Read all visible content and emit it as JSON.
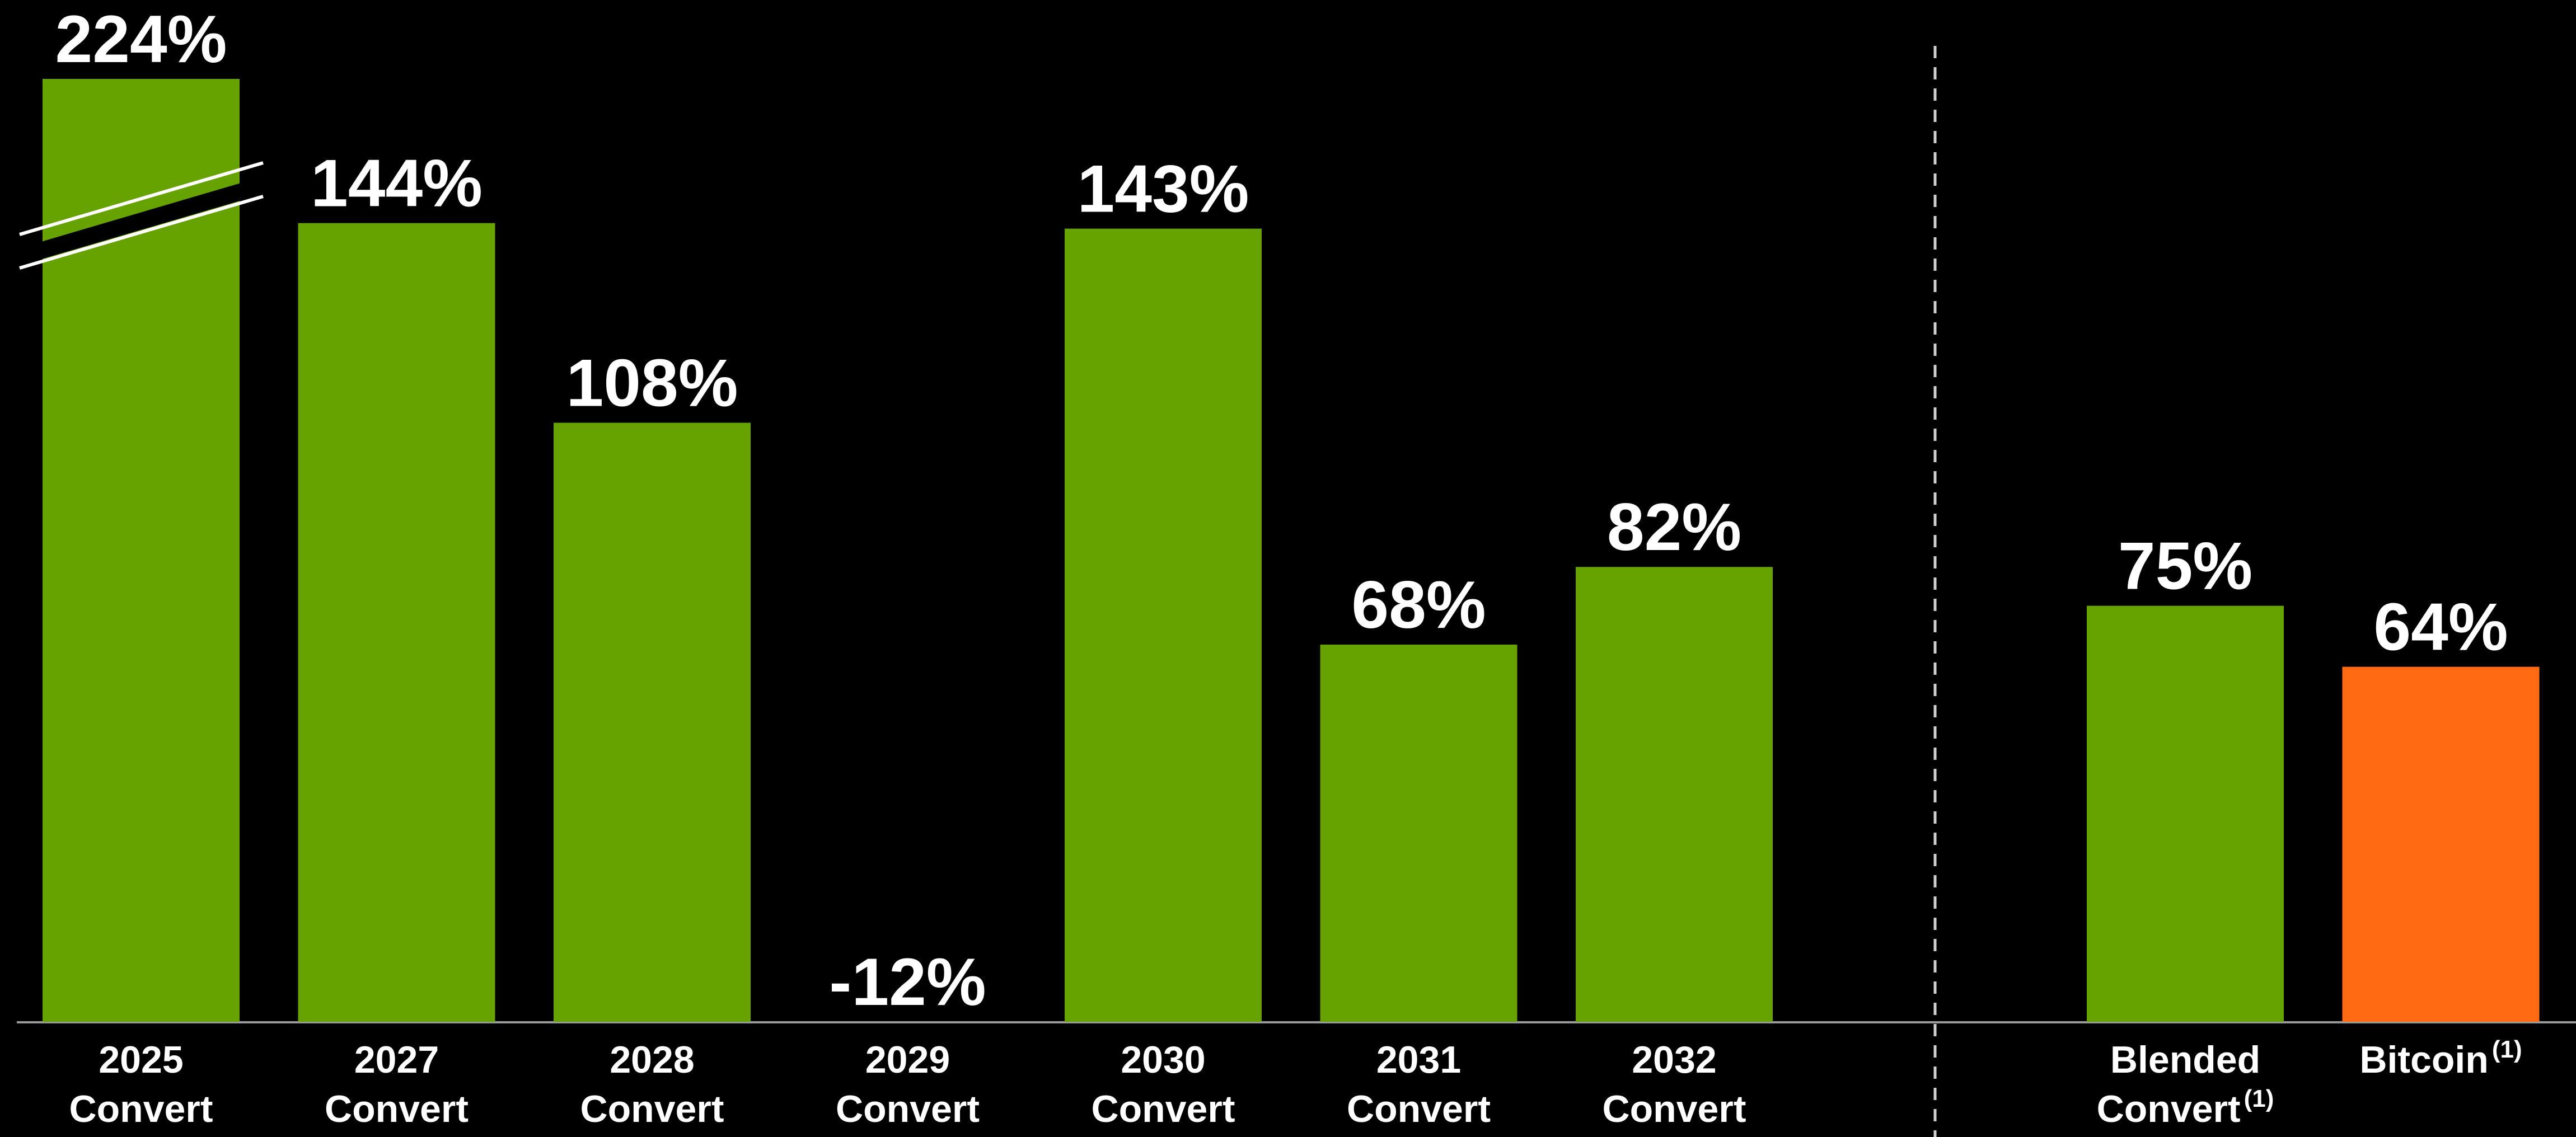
{
  "chart_data": {
    "type": "bar",
    "categories": [
      "2025 Convert",
      "2027 Convert",
      "2028 Convert",
      "2029 Convert",
      "2030 Convert",
      "2031 Convert",
      "2032 Convert",
      "Blended Convert",
      "Bitcoin"
    ],
    "category_notes": [
      null,
      null,
      null,
      null,
      null,
      null,
      null,
      "(1)",
      "(1)"
    ],
    "values": [
      224,
      144,
      108,
      -12,
      143,
      68,
      82,
      75,
      64
    ],
    "value_labels": [
      "224%",
      "144%",
      "108%",
      "-12%",
      "143%",
      "68%",
      "82%",
      "75%",
      "64%"
    ],
    "colors": [
      "#66a300",
      "#66a300",
      "#66a300",
      "#66a300",
      "#66a300",
      "#66a300",
      "#66a300",
      "#66a300",
      "#ff6a13"
    ],
    "ylim": [
      0,
      170
    ]
  }
}
